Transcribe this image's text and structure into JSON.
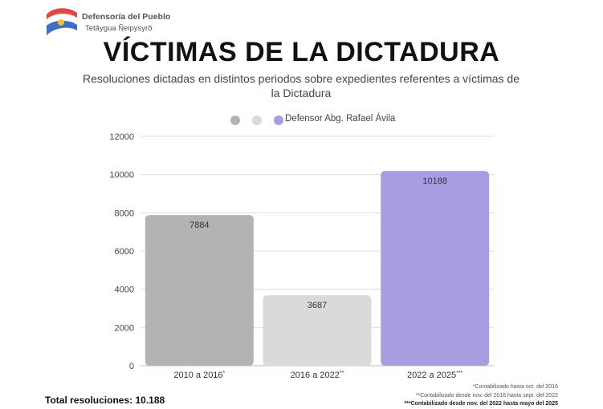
{
  "header": {
    "org_name": "Defensoría del Pueblo",
    "org_subtitle": "Tetãygua Ñeipysyrõ"
  },
  "chart_data": {
    "type": "bar",
    "title": "VÍCTIMAS DE LA DICTADURA",
    "subtitle": "Resoluciones dictadas en distintos periodos sobre expedientes referentes a víctimas de la Dictadura",
    "categories": [
      "2010 a 2016*",
      "2016 a 2022**",
      "2022 a 2025***"
    ],
    "values": [
      7884,
      3687,
      10188
    ],
    "bar_colors": [
      "#b3b3b3",
      "#dadada",
      "#a89de0"
    ],
    "legend": [
      {
        "label": "",
        "color": "#b3b3b3"
      },
      {
        "label": "",
        "color": "#dadada"
      },
      {
        "label": "Defensor Abg. Rafael Ávila",
        "color": "#a89de0"
      }
    ],
    "legend_position": "top",
    "ylim": [
      0,
      12000
    ],
    "yticks": [
      0,
      2000,
      4000,
      6000,
      8000,
      10000,
      12000
    ],
    "grid": true
  },
  "footer": {
    "total": "Total resoluciones: 10.188",
    "notes": [
      "*Contabilizado hasta oct. del 2016",
      "**Contabilizado desde nov. del 2016 hasta sept. del 2022",
      "***Contabilizado desde nov. del 2022 hasta mayo del 2025"
    ]
  }
}
